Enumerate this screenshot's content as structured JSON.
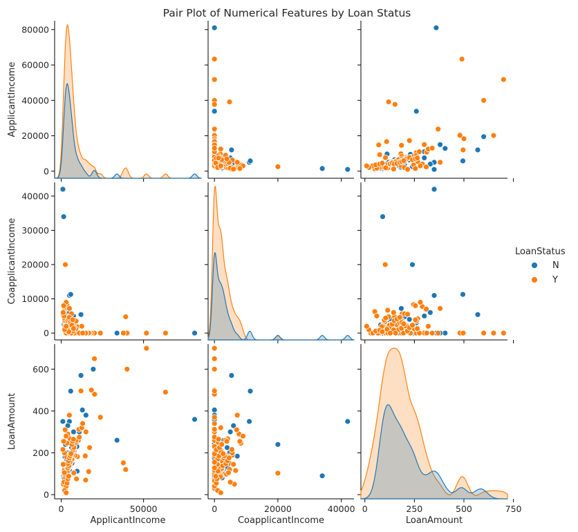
{
  "figure": {
    "title": "Pair Plot of Numerical Features by Loan Status"
  },
  "legend": {
    "title": "LoanStatus",
    "placement": "right-center",
    "entries": [
      {
        "label": "N",
        "color": "#1f77b4"
      },
      {
        "label": "Y",
        "color": "#ff7f0e"
      }
    ]
  },
  "chart_data": {
    "type": "scatter",
    "variables": [
      "ApplicantIncome",
      "CoapplicantIncome",
      "LoanAmount"
    ],
    "axes": {
      "ApplicantIncome": {
        "range": [
          -4000,
          85000
        ],
        "ticks": [
          0,
          50000
        ],
        "row_ticks": [
          0,
          20000,
          40000,
          60000,
          80000
        ]
      },
      "CoapplicantIncome": {
        "range": [
          -2000,
          44000
        ],
        "ticks": [
          0,
          20000,
          40000
        ],
        "row_ticks": [
          0,
          10000,
          20000,
          30000,
          40000
        ]
      },
      "LoanAmount": {
        "range": [
          -20,
          720
        ],
        "ticks": [
          0,
          250,
          500,
          750
        ],
        "row_ticks": [
          0,
          200,
          400,
          600
        ]
      }
    },
    "diagonal": "kde",
    "off_diagonal": "scatter",
    "grid": false,
    "series": [
      {
        "name": "N",
        "color": "#1f77b4",
        "points": [
          [
            81000,
            0,
            360
          ],
          [
            33846,
            0,
            260
          ],
          [
            19484,
            0,
            600
          ],
          [
            20667,
            0,
            480
          ],
          [
            12876,
            0,
            405
          ],
          [
            9703,
            0,
            112
          ],
          [
            6000,
            0,
            175
          ],
          [
            3900,
            0,
            90
          ],
          [
            2600,
            20000,
            240
          ],
          [
            5000,
            11000,
            350
          ],
          [
            5800,
            11300,
            495
          ],
          [
            1000,
            42000,
            350
          ],
          [
            1500,
            34000,
            90
          ],
          [
            12000,
            5400,
            570
          ],
          [
            7500,
            5000,
            300
          ],
          [
            4000,
            6000,
            330
          ],
          [
            4166,
            7210,
            184
          ],
          [
            3750,
            4750,
            200
          ],
          [
            2333,
            3500,
            180
          ],
          [
            1853,
            2840,
            114
          ],
          [
            6333,
            4000,
            225
          ],
          [
            9166,
            0,
            244
          ],
          [
            7000,
            3000,
            260
          ],
          [
            3000,
            2500,
            150
          ],
          [
            2500,
            2000,
            120
          ],
          [
            3500,
            1500,
            100
          ],
          [
            4500,
            1000,
            140
          ],
          [
            5500,
            2000,
            160
          ],
          [
            8000,
            1500,
            210
          ],
          [
            11000,
            0,
            300
          ],
          [
            2000,
            3000,
            100
          ],
          [
            3200,
            0,
            70
          ],
          [
            4200,
            0,
            110
          ],
          [
            5200,
            1200,
            130
          ],
          [
            6500,
            0,
            150
          ],
          [
            2800,
            1800,
            95
          ],
          [
            3600,
            2200,
            125
          ],
          [
            4800,
            2600,
            155
          ],
          [
            1800,
            2400,
            80
          ],
          [
            7200,
            800,
            180
          ],
          [
            9500,
            0,
            230
          ],
          [
            15000,
            0,
            380
          ],
          [
            2200,
            4200,
            130
          ],
          [
            3300,
            3700,
            170
          ],
          [
            4400,
            3300,
            190
          ],
          [
            5600,
            0,
            200
          ],
          [
            6800,
            1700,
            240
          ],
          [
            3100,
            1300,
            105
          ],
          [
            2600,
            900,
            85
          ],
          [
            5000,
            0,
            120
          ]
        ]
      },
      {
        "name": "Y",
        "color": "#ff7f0e",
        "points": [
          [
            63337,
            0,
            490
          ],
          [
            51763,
            0,
            700
          ],
          [
            39999,
            0,
            600
          ],
          [
            39147,
            4750,
            120
          ],
          [
            37719,
            0,
            152
          ],
          [
            23803,
            0,
            370
          ],
          [
            20233,
            0,
            480
          ],
          [
            20166,
            0,
            650
          ],
          [
            18333,
            0,
            500
          ],
          [
            17263,
            0,
            225
          ],
          [
            16692,
            0,
            110
          ],
          [
            15000,
            0,
            300
          ],
          [
            14583,
            0,
            185
          ],
          [
            14866,
            0,
            70
          ],
          [
            12000,
            0,
            496
          ],
          [
            10750,
            0,
            312
          ],
          [
            10408,
            0,
            259
          ],
          [
            9833,
            1833,
            182
          ],
          [
            9323,
            0,
            75
          ],
          [
            8333,
            3750,
            187
          ],
          [
            7660,
            0,
            104
          ],
          [
            6250,
            5654,
            188
          ],
          [
            5833,
            3167,
            158
          ],
          [
            5417,
            4196,
            267
          ],
          [
            4583,
            2083,
            165
          ],
          [
            4000,
            7750,
            290
          ],
          [
            3750,
            4750,
            150
          ],
          [
            3500,
            8333,
            246
          ],
          [
            3167,
            4000,
            180
          ],
          [
            2583,
            2358,
            120
          ],
          [
            2500,
            20000,
            103
          ],
          [
            3000,
            9000,
            280
          ],
          [
            2400,
            7000,
            310
          ],
          [
            2000,
            5625,
            200
          ],
          [
            1800,
            6667,
            115
          ],
          [
            1299,
            6300,
            50
          ],
          [
            1025,
            5500,
            216
          ],
          [
            3750,
            0,
            116
          ],
          [
            4750,
            2000,
            130
          ],
          [
            5250,
            1500,
            140
          ],
          [
            6000,
            2500,
            160
          ],
          [
            6500,
            1000,
            170
          ],
          [
            7000,
            1800,
            190
          ],
          [
            7500,
            2200,
            210
          ],
          [
            8000,
            0,
            230
          ],
          [
            8750,
            1200,
            250
          ],
          [
            9000,
            3500,
            260
          ],
          [
            11000,
            0,
            275
          ],
          [
            12500,
            2000,
            320
          ],
          [
            13000,
            0,
            340
          ],
          [
            3300,
            1500,
            110
          ],
          [
            3800,
            2300,
            125
          ],
          [
            4300,
            1700,
            135
          ],
          [
            4800,
            900,
            145
          ],
          [
            5300,
            0,
            155
          ],
          [
            2700,
            2800,
            95
          ],
          [
            3100,
            3300,
            100
          ],
          [
            3600,
            1100,
            112
          ],
          [
            4100,
            0,
            128
          ],
          [
            4600,
            2600,
            138
          ],
          [
            2900,
            0,
            66
          ],
          [
            3400,
            2000,
            90
          ],
          [
            5100,
            3000,
            175
          ],
          [
            5700,
            1400,
            185
          ],
          [
            6200,
            0,
            195
          ],
          [
            6700,
            2100,
            205
          ],
          [
            7200,
            600,
            215
          ],
          [
            7700,
            1600,
            225
          ],
          [
            2300,
            1900,
            85
          ],
          [
            2100,
            3800,
            98
          ],
          [
            1900,
            4400,
            105
          ],
          [
            1700,
            5000,
            60
          ],
          [
            3950,
            3600,
            148
          ],
          [
            4450,
            4100,
            162
          ],
          [
            4950,
            4600,
            176
          ],
          [
            5450,
            3100,
            186
          ],
          [
            5950,
            2700,
            196
          ],
          [
            6450,
            2300,
            240
          ],
          [
            6950,
            3900,
            255
          ],
          [
            7450,
            1300,
            265
          ],
          [
            2650,
            0,
            30
          ],
          [
            3050,
            0,
            40
          ],
          [
            3550,
            600,
            55
          ],
          [
            4050,
            800,
            75
          ],
          [
            4550,
            400,
            88
          ],
          [
            1500,
            8000,
            255
          ],
          [
            1200,
            6000,
            145
          ],
          [
            2100,
            1000,
            20
          ],
          [
            3000,
            2000,
            9
          ],
          [
            5000,
            7200,
            380
          ]
        ]
      }
    ]
  }
}
